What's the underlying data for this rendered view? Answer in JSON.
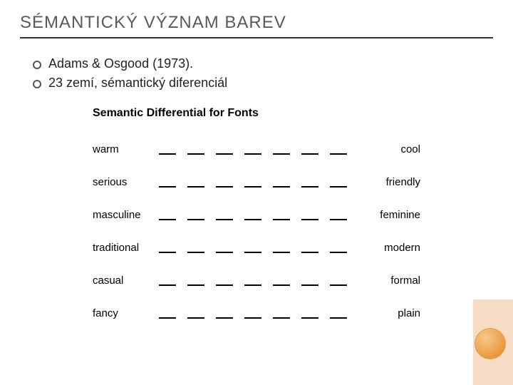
{
  "title_html": "SÉMANTICKÝ VÝZNAM BAREV",
  "bullets": [
    "Adams & Osgood (1973).",
    "23 zemí, sémantický diferenciál"
  ],
  "figure": {
    "title": "Semantic Differential for Fonts",
    "scale_steps": 7,
    "rows": [
      {
        "left": "warm",
        "right": "cool"
      },
      {
        "left": "serious",
        "right": "friendly"
      },
      {
        "left": "masculine",
        "right": "feminine"
      },
      {
        "left": "traditional",
        "right": "modern"
      },
      {
        "left": "casual",
        "right": "formal"
      },
      {
        "left": "fancy",
        "right": "plain"
      }
    ]
  },
  "colors": {
    "title_text": "#5a5a5a",
    "underline": "#333333",
    "body_text": "#222222",
    "dash": "#000000",
    "decor_band": "#f7dcc5",
    "decor_circle_inner": "#f9c78c",
    "decor_circle_outer": "#e89a3f",
    "background": "#ffffff"
  },
  "fonts": {
    "title_size_pt": 24,
    "bullet_size_pt": 18,
    "fig_title_size_pt": 16,
    "row_label_size_pt": 15
  }
}
